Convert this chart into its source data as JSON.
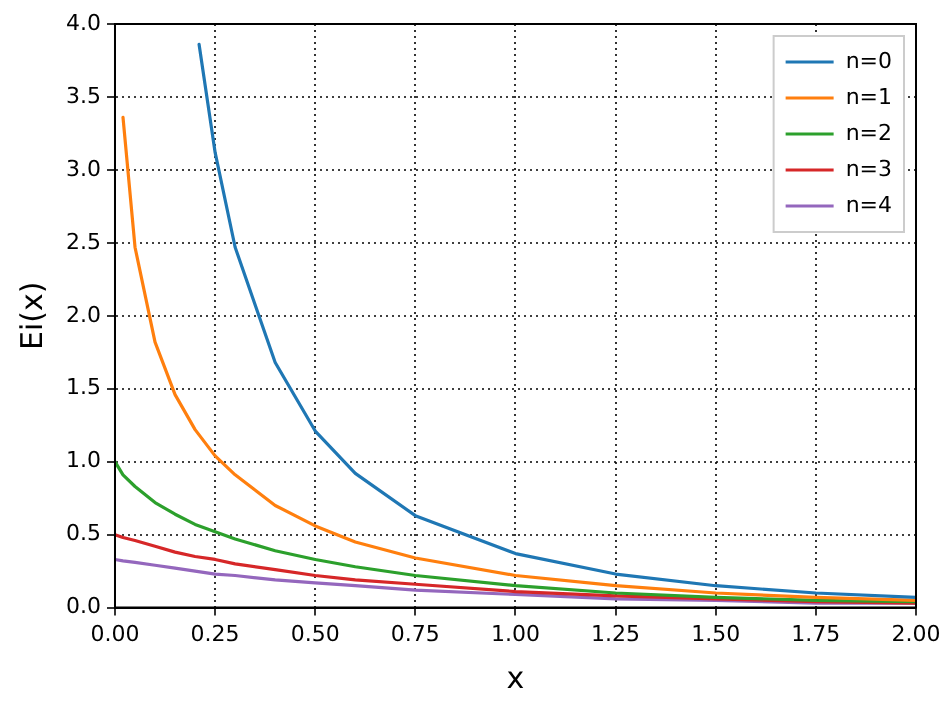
{
  "chart_data": {
    "type": "line",
    "xlabel": "x",
    "ylabel": "Ei(x)",
    "xlim": [
      0,
      2
    ],
    "ylim": [
      0,
      4
    ],
    "xticks": [
      {
        "value": 0,
        "label": "0.00"
      },
      {
        "value": 0.25,
        "label": "0.25"
      },
      {
        "value": 0.5,
        "label": "0.50"
      },
      {
        "value": 0.75,
        "label": "0.75"
      },
      {
        "value": 1,
        "label": "1.00"
      },
      {
        "value": 1.25,
        "label": "1.25"
      },
      {
        "value": 1.5,
        "label": "1.50"
      },
      {
        "value": 1.75,
        "label": "1.75"
      },
      {
        "value": 2,
        "label": "2.00"
      }
    ],
    "yticks": [
      {
        "value": 0,
        "label": "0.0"
      },
      {
        "value": 0.5,
        "label": "0.5"
      },
      {
        "value": 1,
        "label": "1.0"
      },
      {
        "value": 1.5,
        "label": "1.5"
      },
      {
        "value": 2,
        "label": "2.0"
      },
      {
        "value": 2.5,
        "label": "2.5"
      },
      {
        "value": 3,
        "label": "3.0"
      },
      {
        "value": 3.5,
        "label": "3.5"
      },
      {
        "value": 4,
        "label": "4.0"
      }
    ],
    "grid": true,
    "legend": "top right",
    "marker": "none",
    "line_style": "solid",
    "series": [
      {
        "name": "n=0",
        "color": "#1f77b4",
        "x": [
          0.21,
          0.25,
          0.3,
          0.4,
          0.5,
          0.6,
          0.75,
          1,
          1.25,
          1.5,
          1.75,
          2
        ],
        "values": [
          3.86,
          3.12,
          2.47,
          1.68,
          1.21,
          0.92,
          0.63,
          0.37,
          0.23,
          0.15,
          0.1,
          0.07
        ]
      },
      {
        "name": "n=1",
        "color": "#ff7f0e",
        "x": [
          0.02,
          0.05,
          0.1,
          0.15,
          0.2,
          0.25,
          0.3,
          0.4,
          0.5,
          0.6,
          0.75,
          1,
          1.25,
          1.5,
          1.75,
          2
        ],
        "values": [
          3.36,
          2.47,
          1.82,
          1.46,
          1.22,
          1.04,
          0.91,
          0.7,
          0.56,
          0.45,
          0.34,
          0.22,
          0.15,
          0.1,
          0.07,
          0.05
        ]
      },
      {
        "name": "n=2",
        "color": "#2ca02c",
        "x": [
          0,
          0.02,
          0.05,
          0.1,
          0.15,
          0.2,
          0.25,
          0.3,
          0.4,
          0.5,
          0.6,
          0.75,
          1,
          1.25,
          1.5,
          1.75,
          2
        ],
        "values": [
          1.0,
          0.91,
          0.83,
          0.72,
          0.64,
          0.57,
          0.52,
          0.47,
          0.39,
          0.33,
          0.28,
          0.22,
          0.15,
          0.1,
          0.07,
          0.05,
          0.04
        ]
      },
      {
        "name": "n=3",
        "color": "#d62728",
        "x": [
          0,
          0.02,
          0.05,
          0.1,
          0.15,
          0.2,
          0.25,
          0.3,
          0.4,
          0.5,
          0.6,
          0.75,
          1,
          1.25,
          1.5,
          1.75,
          2
        ],
        "values": [
          0.5,
          0.48,
          0.46,
          0.42,
          0.38,
          0.35,
          0.33,
          0.3,
          0.26,
          0.22,
          0.19,
          0.16,
          0.11,
          0.08,
          0.06,
          0.04,
          0.03
        ]
      },
      {
        "name": "n=4",
        "color": "#9467bd",
        "x": [
          0,
          0.02,
          0.05,
          0.1,
          0.15,
          0.2,
          0.25,
          0.3,
          0.4,
          0.5,
          0.6,
          0.75,
          1,
          1.25,
          1.5,
          1.75,
          2
        ],
        "values": [
          0.33,
          0.32,
          0.31,
          0.29,
          0.27,
          0.25,
          0.23,
          0.22,
          0.19,
          0.17,
          0.15,
          0.12,
          0.09,
          0.06,
          0.05,
          0.03,
          0.03
        ]
      }
    ]
  }
}
